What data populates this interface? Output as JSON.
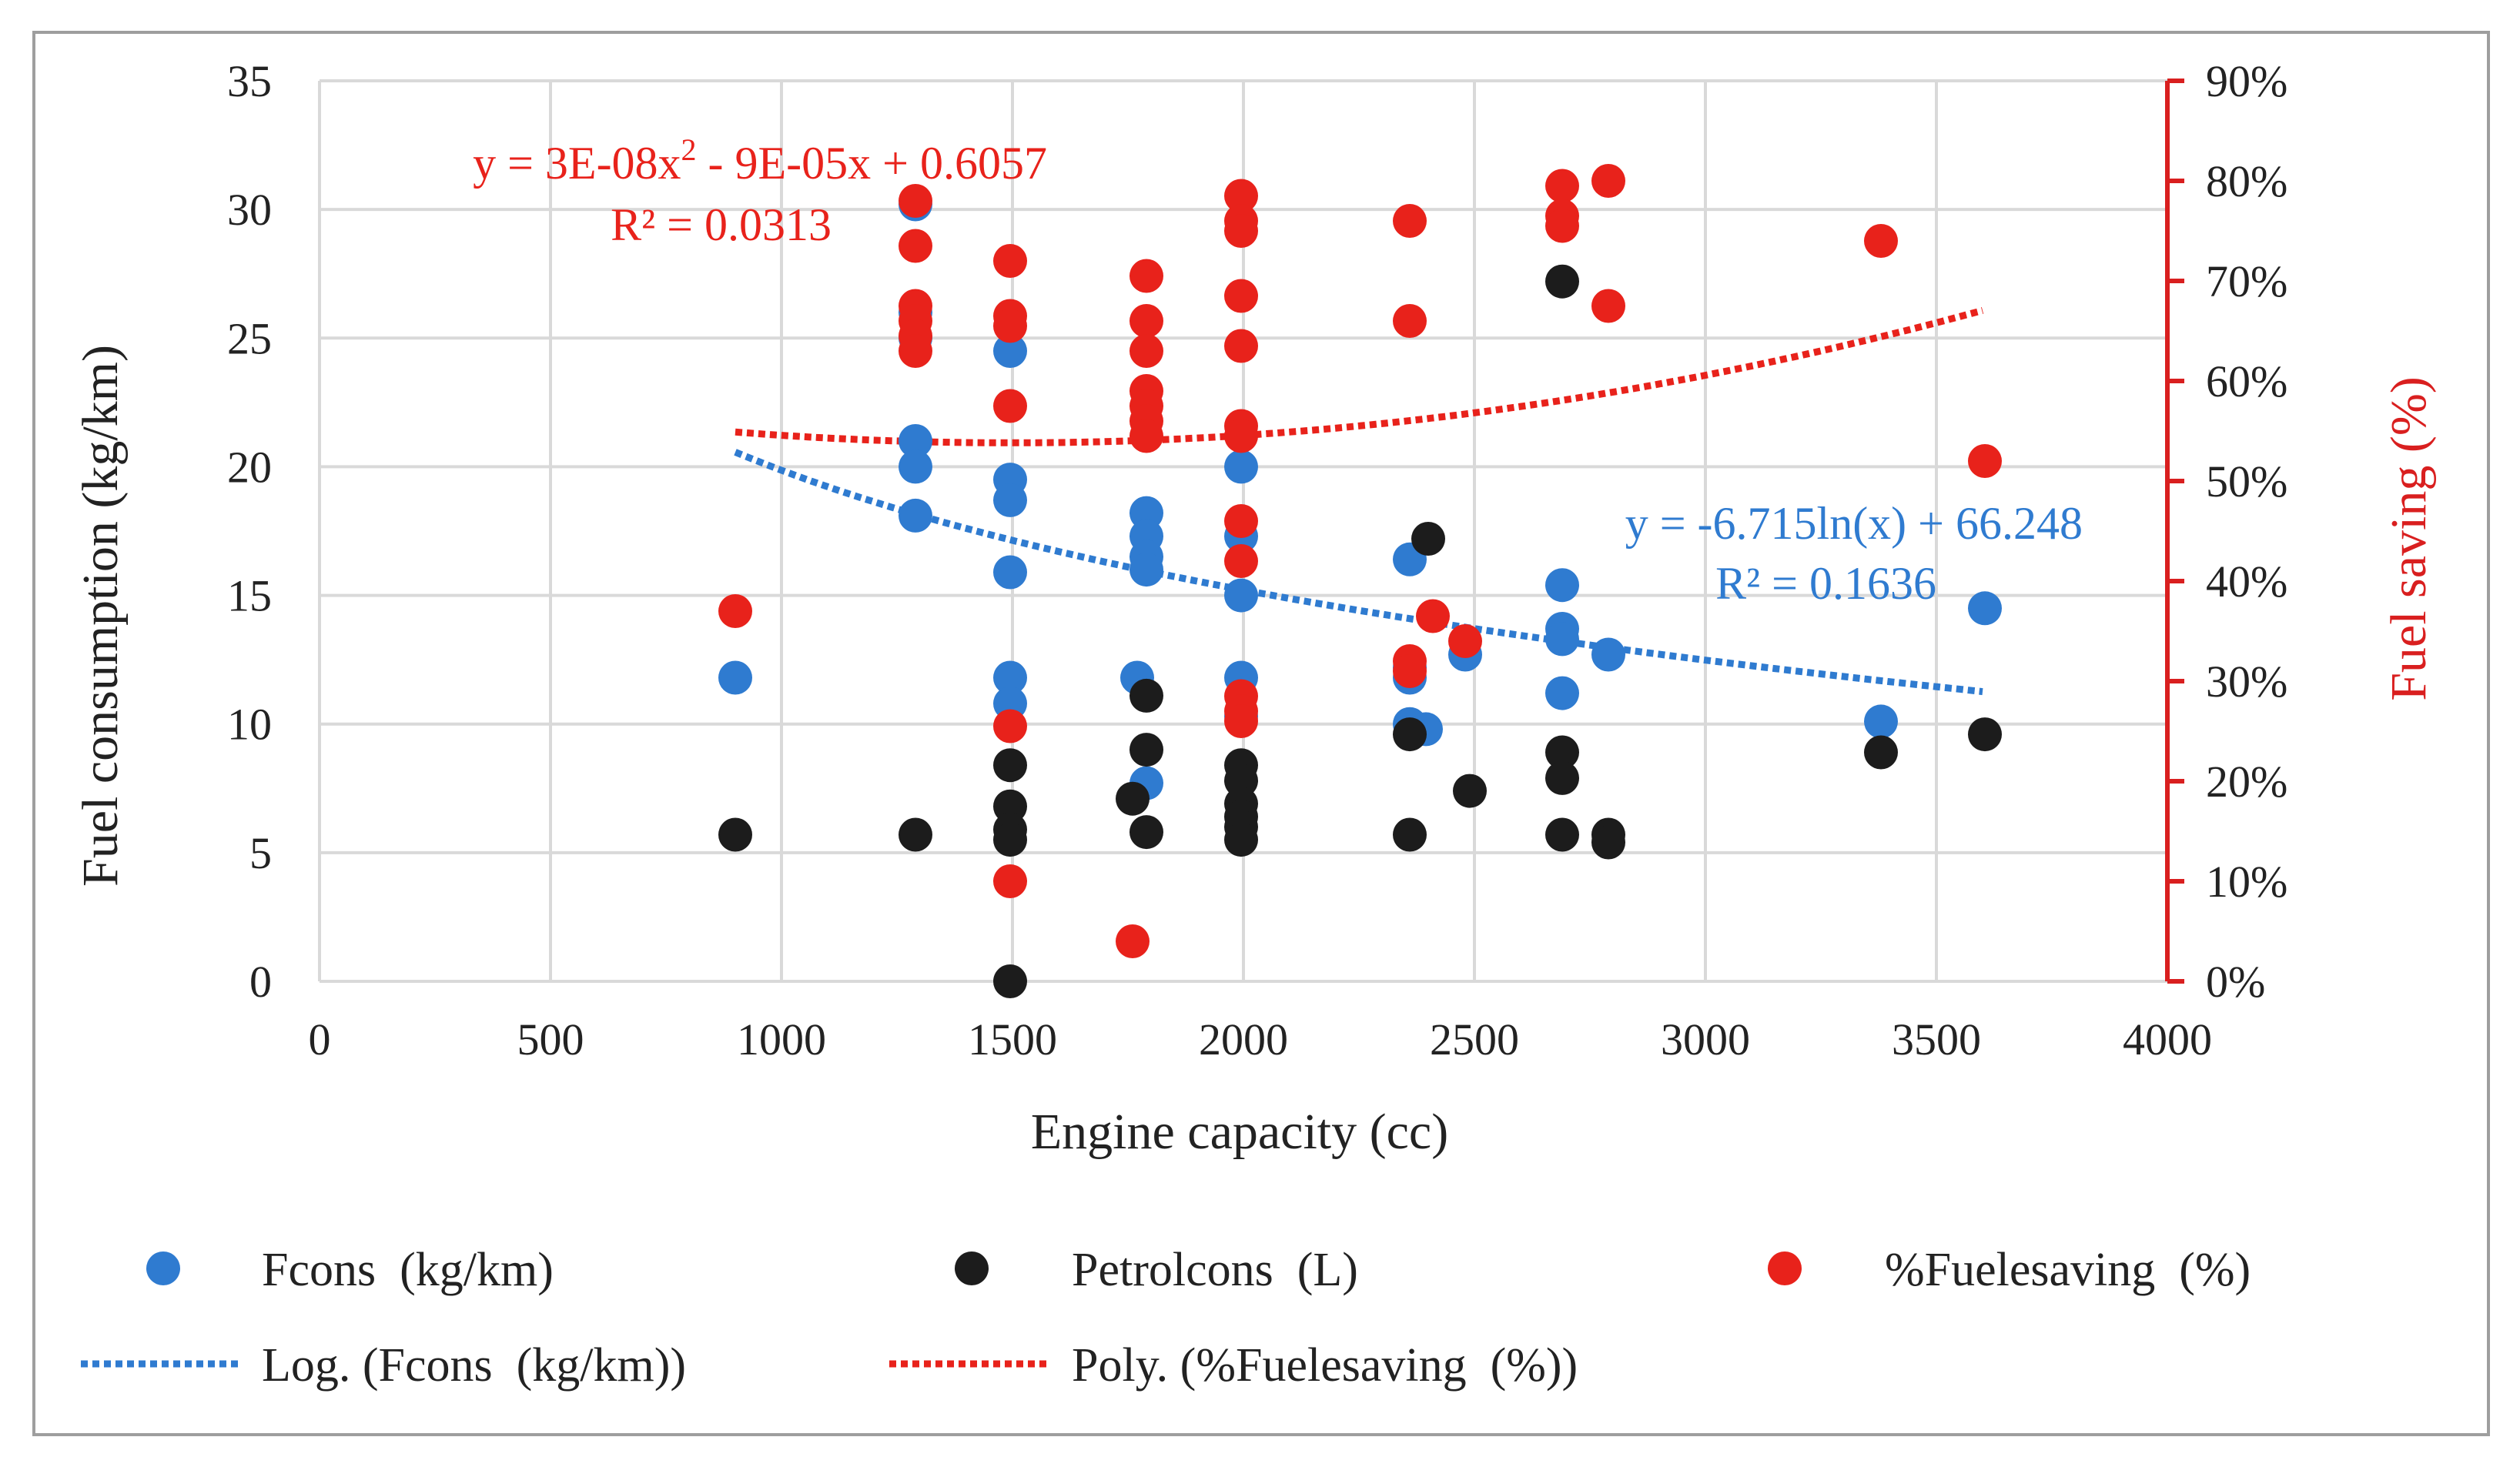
{
  "chart_data": {
    "type": "scatter",
    "title": "",
    "xlabel": "Engine capacity (cc)",
    "ylabel": "Fuel consumption (kg/km)",
    "y2label": "Fuel saving (%)",
    "xlim": [
      0,
      4000
    ],
    "ylim": [
      0,
      35
    ],
    "y2lim": [
      0,
      0.9
    ],
    "x_ticks": [
      "0",
      "500",
      "1000",
      "1500",
      "2000",
      "2500",
      "3000",
      "3500",
      "4000"
    ],
    "y_ticks": [
      "0",
      "5",
      "10",
      "15",
      "20",
      "25",
      "30",
      "35"
    ],
    "y2_ticks": [
      "0%",
      "10%",
      "20%",
      "30%",
      "40%",
      "50%",
      "60%",
      "70%",
      "80%",
      "90%"
    ],
    "grid": true,
    "colors": {
      "fcons": "#2f7bd0",
      "petrol": "#1c1c1c",
      "saving": "#e8221b",
      "axis2": "#d91f1f",
      "grid": "#d9d9d9",
      "trend_log": "#2f7bd0",
      "trend_poly": "#e8221b"
    },
    "series": [
      {
        "name": "Fcons  (kg/km)",
        "axis": "left",
        "points": [
          [
            900,
            11.8
          ],
          [
            1290,
            30.2
          ],
          [
            1290,
            26.0
          ],
          [
            1290,
            25.0
          ],
          [
            1290,
            21.0
          ],
          [
            1290,
            20.0
          ],
          [
            1290,
            18.1
          ],
          [
            1495,
            24.5
          ],
          [
            1495,
            19.5
          ],
          [
            1495,
            18.7
          ],
          [
            1495,
            15.9
          ],
          [
            1495,
            11.8
          ],
          [
            1495,
            10.8
          ],
          [
            1770,
            11.8
          ],
          [
            1790,
            18.2
          ],
          [
            1790,
            17.3
          ],
          [
            1790,
            16.5
          ],
          [
            1790,
            16.0
          ],
          [
            1790,
            7.7
          ],
          [
            1995,
            20.0
          ],
          [
            1995,
            17.3
          ],
          [
            1995,
            15.0
          ],
          [
            1995,
            11.8
          ],
          [
            1995,
            10.3
          ],
          [
            2360,
            16.4
          ],
          [
            2360,
            12.2
          ],
          [
            2360,
            11.8
          ],
          [
            2360,
            10.0
          ],
          [
            2395,
            9.8
          ],
          [
            2480,
            12.7
          ],
          [
            2690,
            15.4
          ],
          [
            2690,
            13.7
          ],
          [
            2690,
            13.3
          ],
          [
            2690,
            11.2
          ],
          [
            2790,
            12.7
          ],
          [
            3380,
            10.1
          ],
          [
            3605,
            14.5
          ]
        ]
      },
      {
        "name": "Petrolcons  (L)",
        "axis": "left",
        "points": [
          [
            900,
            5.7
          ],
          [
            1290,
            5.7
          ],
          [
            1495,
            8.4
          ],
          [
            1495,
            6.8
          ],
          [
            1495,
            5.9
          ],
          [
            1495,
            5.5
          ],
          [
            1495,
            0.0
          ],
          [
            1760,
            7.1
          ],
          [
            1790,
            11.1
          ],
          [
            1790,
            9.0
          ],
          [
            1790,
            5.8
          ],
          [
            1995,
            8.4
          ],
          [
            1995,
            7.8
          ],
          [
            1995,
            6.9
          ],
          [
            1995,
            6.4
          ],
          [
            1995,
            6.0
          ],
          [
            1995,
            5.5
          ],
          [
            2360,
            9.6
          ],
          [
            2360,
            5.7
          ],
          [
            2400,
            17.2
          ],
          [
            2490,
            7.4
          ],
          [
            2690,
            27.2
          ],
          [
            2690,
            8.9
          ],
          [
            2690,
            7.9
          ],
          [
            2690,
            5.7
          ],
          [
            2790,
            5.7
          ],
          [
            2790,
            5.4
          ],
          [
            3380,
            8.9
          ],
          [
            3605,
            9.6
          ]
        ]
      },
      {
        "name": "%Fuelesaving  (%)",
        "axis": "right",
        "points": [
          [
            900,
            0.37
          ],
          [
            1290,
            0.78
          ],
          [
            1290,
            0.735
          ],
          [
            1290,
            0.675
          ],
          [
            1290,
            0.66
          ],
          [
            1290,
            0.645
          ],
          [
            1290,
            0.63
          ],
          [
            1495,
            0.72
          ],
          [
            1495,
            0.665
          ],
          [
            1495,
            0.655
          ],
          [
            1495,
            0.575
          ],
          [
            1495,
            0.255
          ],
          [
            1495,
            0.1
          ],
          [
            1760,
            0.04
          ],
          [
            1790,
            0.705
          ],
          [
            1790,
            0.66
          ],
          [
            1790,
            0.63
          ],
          [
            1790,
            0.59
          ],
          [
            1790,
            0.575
          ],
          [
            1790,
            0.56
          ],
          [
            1790,
            0.545
          ],
          [
            1995,
            0.785
          ],
          [
            1995,
            0.76
          ],
          [
            1995,
            0.75
          ],
          [
            1995,
            0.685
          ],
          [
            1995,
            0.635
          ],
          [
            1995,
            0.555
          ],
          [
            1995,
            0.545
          ],
          [
            1995,
            0.46
          ],
          [
            1995,
            0.42
          ],
          [
            1995,
            0.285
          ],
          [
            1995,
            0.27
          ],
          [
            1995,
            0.26
          ],
          [
            2360,
            0.76
          ],
          [
            2360,
            0.66
          ],
          [
            2360,
            0.32
          ],
          [
            2360,
            0.31
          ],
          [
            2410,
            0.365
          ],
          [
            2480,
            0.34
          ],
          [
            2690,
            0.795
          ],
          [
            2690,
            0.765
          ],
          [
            2690,
            0.755
          ],
          [
            2790,
            0.8
          ],
          [
            2790,
            0.675
          ],
          [
            3380,
            0.74
          ],
          [
            3605,
            0.52
          ]
        ]
      }
    ],
    "trendlines": [
      {
        "name": "Log. (Fcons  (kg/km))",
        "type": "logarithmic",
        "axis": "left",
        "a": -6.715,
        "b": 66.248,
        "x_range": [
          900,
          3600
        ],
        "equation": "y = -6.715ln(x) + 66.248",
        "r2": "R² = 0.1636"
      },
      {
        "name": "Poly. (%Fuelesaving  (%))",
        "type": "polynomial",
        "axis": "right",
        "coeffs": [
          3e-08,
          -9e-05,
          0.6057
        ],
        "x_range": [
          900,
          3600
        ],
        "equation_parts": [
          "y = 3E-08x",
          "2",
          " - 9E-05x + 0.6057"
        ],
        "r2": "R² = 0.0313"
      }
    ],
    "legend": {
      "position": "bottom",
      "items": [
        "Fcons  (kg/km)",
        "Petrolcons  (L)",
        "%Fuelesaving  (%)",
        "Log. (Fcons  (kg/km))",
        "Poly. (%Fuelesaving  (%))"
      ]
    }
  }
}
